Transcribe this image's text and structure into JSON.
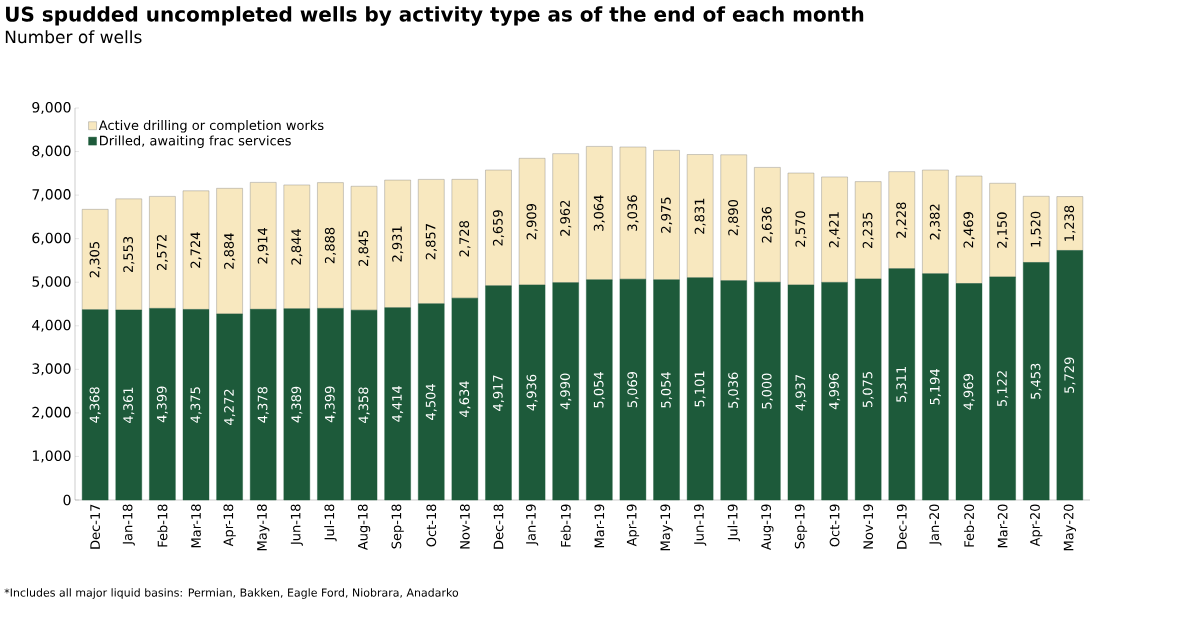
{
  "chart_data": {
    "type": "bar",
    "stacked": true,
    "title": "US spudded uncompleted wells by activity type as of the end of each month",
    "subtitle": "Number of wells",
    "categories": [
      "Dec-17",
      "Jan-18",
      "Feb-18",
      "Mar-18",
      "Apr-18",
      "May-18",
      "Jun-18",
      "Jul-18",
      "Aug-18",
      "Sep-18",
      "Oct-18",
      "Nov-18",
      "Dec-18",
      "Jan-19",
      "Feb-19",
      "Mar-19",
      "Apr-19",
      "May-19",
      "Jun-19",
      "Jul-19",
      "Aug-19",
      "Sep-19",
      "Oct-19",
      "Nov-19",
      "Dec-19",
      "Jan-20",
      "Feb-20",
      "Mar-20",
      "Apr-20",
      "May-20"
    ],
    "series": [
      {
        "name": "Drilled, awaiting frac services",
        "color": "#1d5a3a",
        "values": [
          4368,
          4361,
          4399,
          4375,
          4272,
          4378,
          4389,
          4399,
          4358,
          4414,
          4504,
          4634,
          4917,
          4936,
          4990,
          5054,
          5069,
          5054,
          5101,
          5036,
          5000,
          4937,
          4996,
          5075,
          5311,
          5194,
          4969,
          5122,
          5453,
          5729
        ],
        "value_labels": [
          "4,368",
          "4,361",
          "4,399",
          "4,375",
          "4,272",
          "4,378",
          "4,389",
          "4,399",
          "4,358",
          "4,414",
          "4,504",
          "4,634",
          "4,917",
          "4,936",
          "4,990",
          "5,054",
          "5,069",
          "5,054",
          "5,101",
          "5,036",
          "5,000",
          "4,937",
          "4,996",
          "5,075",
          "5,311",
          "5,194",
          "4,969",
          "5,122",
          "5,453",
          "5,729"
        ]
      },
      {
        "name": "Active drilling or completion works",
        "color": "#f8e8bf",
        "values": [
          2305,
          2553,
          2572,
          2724,
          2884,
          2914,
          2844,
          2888,
          2845,
          2931,
          2857,
          2728,
          2659,
          2909,
          2962,
          3064,
          3036,
          2975,
          2831,
          2890,
          2636,
          2570,
          2421,
          2235,
          2228,
          2382,
          2469,
          2150,
          1520,
          1238
        ],
        "value_labels": [
          "2,305",
          "2,553",
          "2,572",
          "2,724",
          "2,884",
          "2,914",
          "2,844",
          "2,888",
          "2,845",
          "2,931",
          "2,857",
          "2,728",
          "2,659",
          "2,909",
          "2,962",
          "3,064",
          "3,036",
          "2,975",
          "2,831",
          "2,890",
          "2,636",
          "2,570",
          "2,421",
          "2,235",
          "2,228",
          "2,382",
          "2,469",
          "2,150",
          "1,520",
          "1,238"
        ]
      }
    ],
    "ylim": [
      0,
      9000
    ],
    "yticks": [
      0,
      {
        "value": 1000,
        "label": "1,000"
      },
      {
        "value": 2000,
        "label": "2,000"
      },
      {
        "value": 3000,
        "label": "3,000"
      },
      {
        "value": 4000,
        "label": "4,000"
      },
      {
        "value": 5000,
        "label": "5,000"
      },
      {
        "value": 6000,
        "label": "6,000"
      },
      {
        "value": 7000,
        "label": "7,000"
      },
      {
        "value": 8000,
        "label": "8,000"
      },
      {
        "value": 9000,
        "label": "9,000"
      }
    ],
    "legend": "top left",
    "annotations": [
      "*Includes all major liquid basins: Permian, Bakken, Eagle Ford, Niobrara, Anadarko"
    ]
  }
}
